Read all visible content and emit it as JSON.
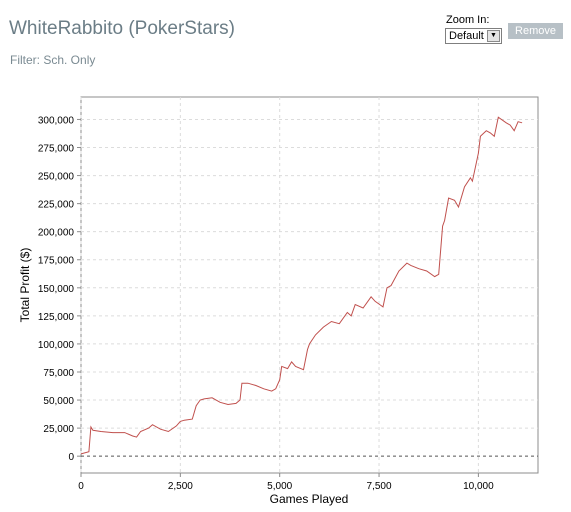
{
  "header": {
    "title": "WhiteRabbito (PokerStars)",
    "filter": "Filter: Sch. Only"
  },
  "controls": {
    "zoom_label": "Zoom In:",
    "zoom_value": "Default",
    "remove_label": "Remove"
  },
  "colors": {
    "line": "#c0504d",
    "grid": "#dcdcdc",
    "zero_line": "#555555",
    "remove_button": "#b7c0c6"
  },
  "icons": {
    "dropdown": "triangle-down-icon"
  },
  "chart_data": {
    "type": "line",
    "xlabel": "Games Played",
    "ylabel": "Total Profit ($)",
    "xlim": [
      0,
      11500
    ],
    "ylim": [
      -15000,
      320000
    ],
    "x_ticks": [
      0,
      2500,
      5000,
      7500,
      10000
    ],
    "x_tick_labels": [
      "0",
      "2,500",
      "5,000",
      "7,500",
      "10,000"
    ],
    "y_ticks": [
      0,
      25000,
      50000,
      75000,
      100000,
      125000,
      150000,
      175000,
      200000,
      225000,
      250000,
      275000,
      300000
    ],
    "y_tick_labels": [
      "0",
      "25,000",
      "50,000",
      "75,000",
      "100,000",
      "125,000",
      "150,000",
      "175,000",
      "200,000",
      "225,000",
      "250,000",
      "275,000",
      "300,000"
    ],
    "grid": true,
    "series": [
      {
        "x": [
          0,
          200,
          250,
          300,
          500,
          800,
          1100,
          1300,
          1400,
          1500,
          1700,
          1800,
          2000,
          2200,
          2400,
          2500,
          2600,
          2800,
          2900,
          3000,
          3100,
          3300,
          3500,
          3700,
          3900,
          4000,
          4050,
          4200,
          4400,
          4600,
          4800,
          4900,
          5000,
          5050,
          5200,
          5300,
          5400,
          5600,
          5700,
          5750,
          5900,
          6100,
          6300,
          6500,
          6700,
          6800,
          6900,
          7100,
          7300,
          7400,
          7600,
          7700,
          7800,
          8000,
          8200,
          8300,
          8500,
          8700,
          8900,
          9000,
          9100,
          9150,
          9250,
          9400,
          9500,
          9650,
          9800,
          9850,
          10000,
          10050,
          10200,
          10300,
          10400,
          10500,
          10700,
          10800,
          10900,
          11000,
          11100
        ],
        "y": [
          2000,
          4000,
          26000,
          23000,
          22000,
          21000,
          21000,
          18000,
          17000,
          22000,
          25000,
          28000,
          24000,
          22000,
          27000,
          31000,
          32000,
          33000,
          45000,
          50000,
          51000,
          52000,
          48000,
          46000,
          47000,
          50000,
          65000,
          65000,
          63000,
          60000,
          58000,
          60000,
          68000,
          80000,
          78000,
          84000,
          80000,
          77000,
          95000,
          100000,
          108000,
          115000,
          120000,
          118000,
          128000,
          125000,
          135000,
          132000,
          142000,
          138000,
          133000,
          150000,
          152000,
          165000,
          172000,
          170000,
          167000,
          165000,
          160000,
          162000,
          205000,
          210000,
          230000,
          228000,
          222000,
          240000,
          248000,
          245000,
          270000,
          285000,
          290000,
          288000,
          285000,
          302000,
          297000,
          295000,
          290000,
          298000,
          297000
        ]
      }
    ]
  }
}
